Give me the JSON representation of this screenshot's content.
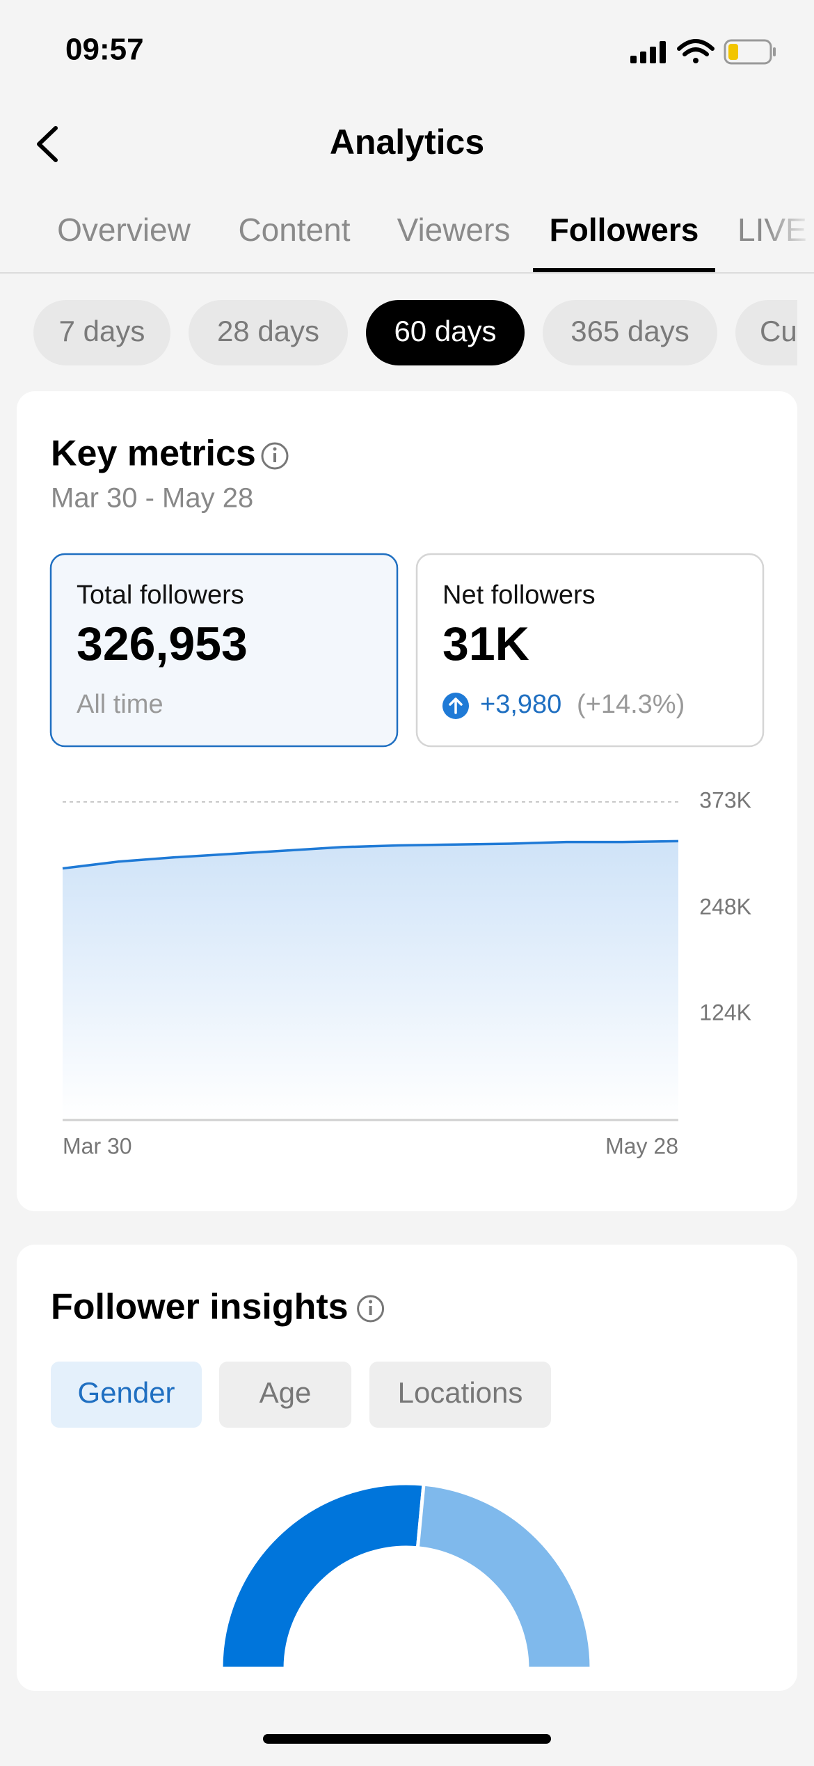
{
  "status_bar": {
    "time": "09:57"
  },
  "header": {
    "title": "Analytics"
  },
  "tabs": [
    "Overview",
    "Content",
    "Viewers",
    "Followers",
    "LIVE"
  ],
  "active_tab": 3,
  "periods": [
    "7 days",
    "28 days",
    "60 days",
    "365 days",
    "Custom"
  ],
  "active_period": 2,
  "key_metrics": {
    "title": "Key metrics",
    "date_range": "Mar 30 - May 28",
    "total": {
      "label": "Total followers",
      "value": "326,953",
      "note": "All time"
    },
    "net": {
      "label": "Net followers",
      "value": "31K",
      "change": "+3,980",
      "change_pct": "(+14.3%)"
    }
  },
  "follower_insights": {
    "title": "Follower insights",
    "tabs": [
      "Gender",
      "Age",
      "Locations"
    ],
    "active_tab": 0
  },
  "chart_data": [
    {
      "type": "area",
      "categories": [
        "Mar 30",
        null,
        null,
        null,
        null,
        null,
        null,
        null,
        null,
        null,
        null,
        "May 28"
      ],
      "values": [
        295000,
        303000,
        308000,
        312000,
        316000,
        320000,
        322000,
        323000,
        324000,
        326000,
        326000,
        327000
      ],
      "color": "#1f7ad6",
      "ylim": [
        0,
        373000
      ],
      "yticks": [
        {
          "value": 124000,
          "label": "124K"
        },
        {
          "value": 248000,
          "label": "248K"
        },
        {
          "value": 373000,
          "label": "373K"
        }
      ],
      "grid": true
    },
    {
      "type": "pie",
      "semicircle": true,
      "values": [
        53,
        47
      ],
      "colors": [
        "#0075db",
        "#7fb9ec"
      ]
    }
  ]
}
